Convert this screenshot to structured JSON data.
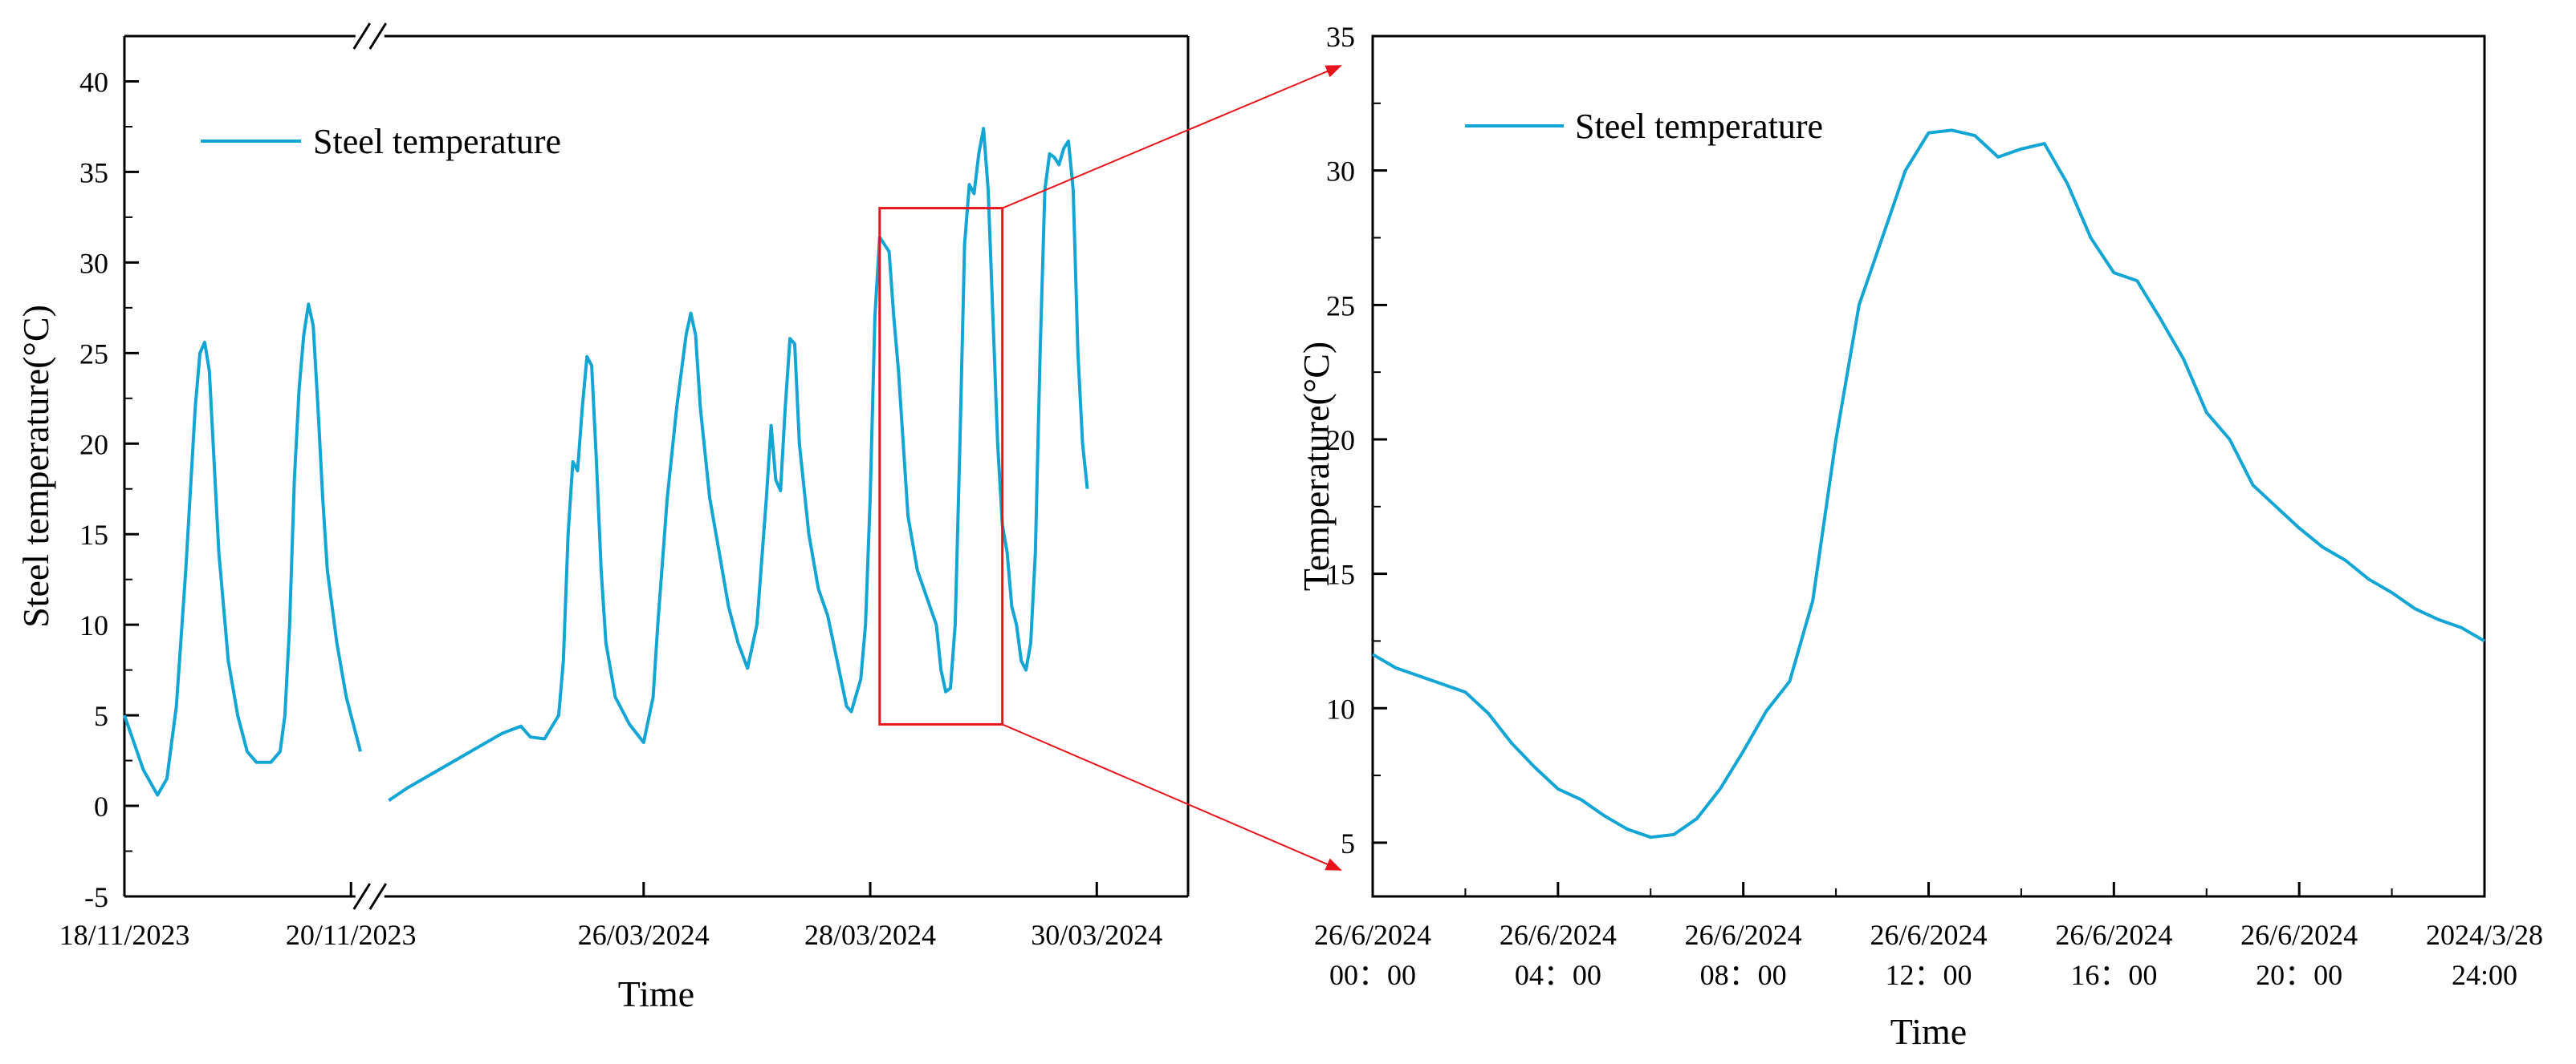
{
  "colors": {
    "series": "#13a5d4",
    "zoom_box": "#e8141c",
    "axis": "#000000"
  },
  "chart_data": [
    {
      "type": "line",
      "xlabel": "Time",
      "ylabel": "Steel temperature(°C)",
      "ylim": [
        -5,
        42.5
      ],
      "yticks": [
        "-5",
        "0",
        "5",
        "10",
        "15",
        "20",
        "25",
        "30",
        "35",
        "40"
      ],
      "x_break": true,
      "x_axis_note": "Broken time axis: two days in Nov 2023, then a gap, then late Mar 2024; x values are hours from the start of each axis",
      "xticks": [
        {
          "label": "18/11/2023",
          "x": 0
        },
        {
          "label": "20/11/2023",
          "x": 48
        },
        {
          "label": "26/03/2024",
          "x": 110
        },
        {
          "label": "28/03/2024",
          "x": 158
        },
        {
          "label": "30/03/2024",
          "x": 206
        }
      ],
      "legend": {
        "label": "Steel temperature",
        "position": "top-left"
      },
      "zoom_box": {
        "x": [
          160,
          186
        ],
        "y": [
          4.5,
          33
        ]
      },
      "series": [
        {
          "name": "Steel temperature",
          "segments": [
            [
              [
                0,
                5
              ],
              [
                2,
                3.5
              ],
              [
                4,
                2
              ],
              [
                7,
                0.6
              ],
              [
                9,
                1.5
              ],
              [
                11,
                5.5
              ],
              [
                13,
                13
              ],
              [
                15,
                22
              ],
              [
                16,
                25
              ],
              [
                17,
                25.6
              ],
              [
                18,
                24
              ],
              [
                19,
                19
              ],
              [
                20,
                14
              ],
              [
                22,
                8
              ],
              [
                24,
                5
              ],
              [
                26,
                3
              ],
              [
                28,
                2.4
              ],
              [
                31,
                2.4
              ],
              [
                33,
                3
              ],
              [
                34,
                5
              ],
              [
                35,
                10
              ],
              [
                36,
                18
              ],
              [
                37,
                23
              ],
              [
                38,
                26
              ],
              [
                39,
                27.7
              ],
              [
                40,
                26.5
              ],
              [
                41,
                22
              ],
              [
                42,
                17
              ],
              [
                43,
                13
              ],
              [
                45,
                9
              ],
              [
                47,
                6
              ],
              [
                50,
                3
              ]
            ],
            [
              [
                56,
                0.3
              ],
              [
                60,
                1
              ],
              [
                70,
                2.5
              ],
              [
                80,
                4
              ],
              [
                84,
                4.4
              ],
              [
                86,
                3.8
              ],
              [
                89,
                3.7
              ],
              [
                92,
                5
              ],
              [
                93,
                8
              ],
              [
                94,
                15
              ],
              [
                95,
                19
              ],
              [
                96,
                18.5
              ],
              [
                97,
                22
              ],
              [
                98,
                24.8
              ],
              [
                99,
                24.3
              ],
              [
                100,
                19
              ],
              [
                101,
                13
              ],
              [
                102,
                9
              ],
              [
                104,
                6
              ],
              [
                107,
                4.5
              ],
              [
                110,
                3.5
              ],
              [
                112,
                6
              ],
              [
                113,
                10
              ],
              [
                115,
                17
              ],
              [
                117,
                22
              ],
              [
                119,
                26
              ],
              [
                120,
                27.2
              ],
              [
                121,
                26
              ],
              [
                122,
                22
              ],
              [
                124,
                17
              ],
              [
                126,
                14
              ],
              [
                128,
                11
              ],
              [
                130,
                9
              ],
              [
                132,
                7.6
              ],
              [
                134,
                10
              ],
              [
                136,
                17
              ],
              [
                137,
                21
              ],
              [
                138,
                18
              ],
              [
                139,
                17.4
              ],
              [
                140,
                22
              ],
              [
                141,
                25.8
              ],
              [
                142,
                25.5
              ],
              [
                143,
                20
              ],
              [
                145,
                15
              ],
              [
                147,
                12
              ],
              [
                149,
                10.5
              ],
              [
                151,
                8
              ],
              [
                153,
                5.5
              ],
              [
                154,
                5.2
              ],
              [
                156,
                7
              ],
              [
                157,
                10
              ],
              [
                158,
                17
              ],
              [
                159,
                27
              ],
              [
                160,
                31.4
              ],
              [
                161,
                31
              ],
              [
                162,
                30.6
              ],
              [
                163,
                27
              ],
              [
                164,
                24
              ],
              [
                165,
                20
              ],
              [
                166,
                16
              ],
              [
                168,
                13
              ],
              [
                170,
                11.5
              ],
              [
                172,
                10
              ],
              [
                173,
                7.5
              ],
              [
                174,
                6.3
              ],
              [
                175,
                6.5
              ],
              [
                176,
                10
              ],
              [
                177,
                20
              ],
              [
                178,
                31
              ],
              [
                179,
                34.3
              ],
              [
                180,
                33.8
              ],
              [
                181,
                36
              ],
              [
                182,
                37.4
              ],
              [
                183,
                34
              ],
              [
                184,
                27
              ],
              [
                185,
                20
              ],
              [
                186,
                15.5
              ],
              [
                187,
                14
              ],
              [
                188,
                11
              ],
              [
                189,
                10
              ],
              [
                190,
                8
              ],
              [
                191,
                7.5
              ],
              [
                192,
                9
              ],
              [
                193,
                14
              ],
              [
                194,
                25
              ],
              [
                195,
                34
              ],
              [
                196,
                36
              ],
              [
                197,
                35.8
              ],
              [
                198,
                35.4
              ],
              [
                199,
                36.3
              ],
              [
                200,
                36.7
              ],
              [
                201,
                34
              ],
              [
                202,
                25
              ],
              [
                203,
                20
              ],
              [
                204,
                17.5
              ]
            ]
          ]
        }
      ]
    },
    {
      "type": "line",
      "xlabel": "Time",
      "ylabel": "Temperature(°C)",
      "ylim": [
        3,
        35
      ],
      "xlim": [
        0,
        24
      ],
      "yticks": [
        "5",
        "10",
        "15",
        "20",
        "25",
        "30",
        "35"
      ],
      "xticks": [
        {
          "line1": "26/6/2024",
          "line2": "00：00",
          "x": 0
        },
        {
          "line1": "26/6/2024",
          "line2": "04：00",
          "x": 4
        },
        {
          "line1": "26/6/2024",
          "line2": "08：00",
          "x": 8
        },
        {
          "line1": "26/6/2024",
          "line2": "12：00",
          "x": 12
        },
        {
          "line1": "26/6/2024",
          "line2": "16：00",
          "x": 16
        },
        {
          "line1": "26/6/2024",
          "line2": "20：00",
          "x": 20
        },
        {
          "line1": "2024/3/28",
          "line2": "24:00",
          "x": 24
        }
      ],
      "legend": {
        "label": "Steel temperature",
        "position": "top-left"
      },
      "series": [
        {
          "name": "Steel temperature",
          "x": [
            0,
            0.5,
            1,
            1.5,
            2,
            2.5,
            3,
            3.5,
            4,
            4.5,
            5,
            5.5,
            6,
            6.5,
            7,
            7.5,
            8,
            8.5,
            9,
            9.5,
            10,
            10.5,
            11,
            11.5,
            12,
            12.5,
            13,
            13.5,
            14,
            14.5,
            15,
            15.5,
            16,
            16.5,
            17,
            17.5,
            18,
            18.5,
            19,
            19.5,
            20,
            20.5,
            21,
            21.5,
            22,
            22.5,
            23,
            23.5,
            24
          ],
          "values": [
            12,
            11.5,
            11.2,
            10.9,
            10.6,
            9.8,
            8.7,
            7.8,
            7,
            6.6,
            6,
            5.5,
            5.2,
            5.3,
            5.9,
            7,
            8.4,
            9.9,
            11,
            14,
            20,
            25,
            27.5,
            30,
            31.4,
            31.5,
            31.3,
            30.5,
            30.8,
            31,
            29.5,
            27.5,
            26.2,
            25.9,
            24.5,
            23,
            21,
            20,
            18.3,
            17.5,
            16.7,
            16,
            15.5,
            14.8,
            14.3,
            13.7,
            13.3,
            13,
            12.5
          ]
        }
      ]
    }
  ]
}
